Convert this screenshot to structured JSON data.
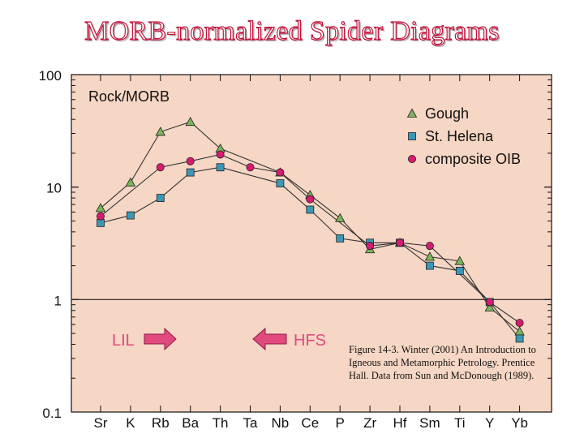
{
  "title": "MORB-normalized Spider Diagrams",
  "caption": "Figure 14-3. Winter (2001) An Introduction to Igneous and Metamorphic Petrology. Prentice Hall. Data from Sun and McDonough (1989).",
  "colors": {
    "plot_bg": "#f6d6c4",
    "title": "#c0143c",
    "gough": "#7bb45a",
    "st_helena": "#3b97b8",
    "composite_oib": "#d81b72",
    "arrow": "#e24a7f",
    "arrow_label": "#e24a7f"
  },
  "chart_data": {
    "type": "line",
    "title": "MORB-normalized Spider Diagrams",
    "ylabel": "Rock/MORB",
    "yscale": "log",
    "ylim": [
      0.1,
      100
    ],
    "yticks": [
      "0.1",
      "1",
      "10",
      "100"
    ],
    "reference_line": 1,
    "categories": [
      "Sr",
      "K",
      "Rb",
      "Ba",
      "Th",
      "Ta",
      "Nb",
      "Ce",
      "P",
      "Zr",
      "Hf",
      "Sm",
      "Ti",
      "Y",
      "Yb"
    ],
    "series": [
      {
        "name": "Gough",
        "marker": "triangle",
        "values": [
          6.5,
          11,
          31,
          38,
          22,
          null,
          13.5,
          8.5,
          5.3,
          2.8,
          3.2,
          2.4,
          2.2,
          0.85,
          0.52
        ]
      },
      {
        "name": "St. Helena",
        "marker": "square",
        "values": [
          4.8,
          5.6,
          8,
          13.5,
          15,
          null,
          10.8,
          6.3,
          3.5,
          3.2,
          3.2,
          2,
          1.8,
          0.95,
          0.45
        ]
      },
      {
        "name": "composite OIB",
        "marker": "circle",
        "values": [
          5.5,
          null,
          15,
          17,
          19.5,
          15,
          13.5,
          7.8,
          null,
          3,
          3.2,
          3,
          null,
          0.95,
          0.62
        ]
      }
    ],
    "legend": [
      "Gough",
      "St. Helena",
      "composite OIB"
    ],
    "legend_position": "top-right",
    "annotations": [
      {
        "label": "LIL",
        "direction": "right"
      },
      {
        "label": "HFS",
        "direction": "left"
      }
    ]
  }
}
